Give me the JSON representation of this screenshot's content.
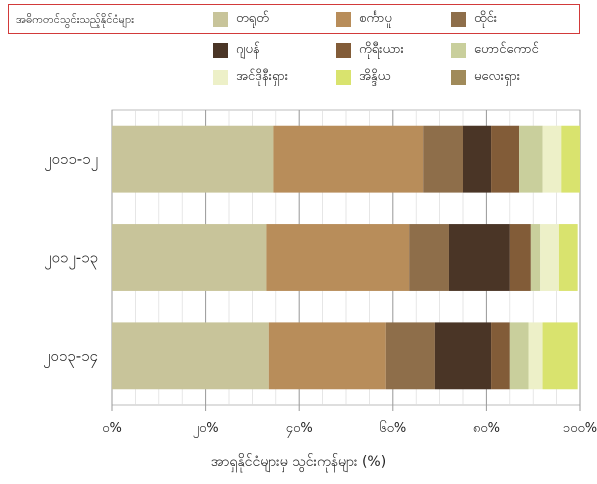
{
  "chart_data": {
    "type": "bar",
    "orientation": "horizontal",
    "stacked": true,
    "legend_title": "အဓိကတင်သွင်းသည့်နိုင်ငံများ",
    "categories": [
      "၂၀၁၁-၁၂",
      "၂၀၁၂-၁၃",
      "၂၀၁၃-၁၄"
    ],
    "series": [
      {
        "name": "တရုတ်",
        "color": "#c8c49a",
        "values": [
          34.5,
          33,
          33.5
        ]
      },
      {
        "name": "စင်္ကာပူ",
        "color": "#b88d5a",
        "values": [
          32,
          30.5,
          25
        ]
      },
      {
        "name": "ထိုင်း",
        "color": "#8e6e4a",
        "values": [
          8.5,
          8.5,
          10.5
        ]
      },
      {
        "name": "ဂျပန်",
        "color": "#4a3526",
        "values": [
          6,
          13,
          12
        ]
      },
      {
        "name": "ကိုရီးယား",
        "color": "#825c38",
        "values": [
          6,
          4.5,
          4
        ]
      },
      {
        "name": "ဟောင်ကောင်",
        "color": "#c9cf9c",
        "values": [
          5,
          2,
          4
        ]
      },
      {
        "name": "အင်ဒိုနီးရှား",
        "color": "#edf0c8",
        "values": [
          4,
          4,
          3
        ]
      },
      {
        "name": "အိန္ဒိယ",
        "color": "#d9e36e",
        "values": [
          4,
          4,
          7.5
        ]
      },
      {
        "name": "မလေးရှား",
        "color": "#a08a5a",
        "values": [
          0,
          0,
          0
        ]
      }
    ],
    "xticks": [
      "၀%",
      "၂၀%",
      "၄၀%",
      "၆၀%",
      "၈၀%",
      "၁၀၀%"
    ],
    "xlim": [
      0,
      100
    ],
    "xlabel": "အာရှနိုင်ငံများမှ သွင်းကုန်များ (%)",
    "grid": true,
    "legend_position": "top"
  }
}
